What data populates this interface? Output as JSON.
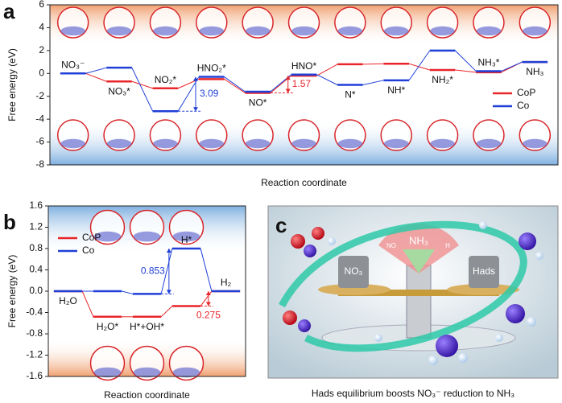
{
  "chart_data": [
    {
      "type": "step",
      "label": "a",
      "ylabel": "Free energy (eV)",
      "xlabel": "Reaction coordinate",
      "categories": [
        "NO₃⁻",
        "NO₃*",
        "NO₂*",
        "HNO₂*",
        "NO*",
        "HNO*",
        "N*",
        "NH*",
        "NH₂*",
        "NH₃*",
        "NH₃"
      ],
      "series": [
        {
          "name": "CoP",
          "color": "#e8262a",
          "values": [
            0,
            -0.7,
            -1.3,
            -0.5,
            -1.7,
            -0.2,
            0.8,
            0.85,
            0.3,
            0.1,
            1.0
          ]
        },
        {
          "name": "Co",
          "color": "#1f3fd8",
          "values": [
            0,
            0.5,
            -3.3,
            -0.3,
            -1.6,
            -0.1,
            -1.0,
            -0.6,
            2.0,
            0.2,
            1.0
          ]
        }
      ],
      "ylim": [
        -8,
        6
      ],
      "yticks": [
        -8,
        -6,
        -4,
        -2,
        0,
        2,
        4,
        6
      ],
      "annotations": [
        {
          "text": "3.09",
          "color": "#1f3fd8"
        },
        {
          "text": "1.57",
          "color": "#e8262a"
        }
      ],
      "legend": "right"
    },
    {
      "type": "step",
      "label": "b",
      "ylabel": "Free energy (eV)",
      "xlabel": "Reaction coordinate",
      "categories": [
        "H₂O",
        "H₂O*",
        "H*+OH*",
        "H*",
        "H₂"
      ],
      "series": [
        {
          "name": "CoP",
          "color": "#e8262a",
          "values": [
            0,
            -0.48,
            -0.48,
            -0.28,
            0
          ]
        },
        {
          "name": "Co",
          "color": "#1f3fd8",
          "values": [
            0,
            0,
            -0.05,
            0.8,
            0
          ]
        }
      ],
      "ylim": [
        -1.6,
        1.6
      ],
      "yticks": [
        -1.6,
        -1.2,
        -0.8,
        -0.4,
        {
          "value": 0,
          "label": "0.0"
        },
        0.4,
        0.8,
        1.2,
        1.6
      ],
      "annotations": [
        {
          "text": "0.853",
          "color": "#1f3fd8"
        },
        {
          "text": "0.275",
          "color": "#e8262a"
        }
      ],
      "legend": "upper left"
    }
  ],
  "panel_c": {
    "label": "c",
    "labels": [
      "NO₃",
      "NH₃",
      "Hads",
      "NO",
      "H"
    ],
    "caption": "Hads equilibrium boosts NO₃⁻ reduction to NH₃"
  }
}
